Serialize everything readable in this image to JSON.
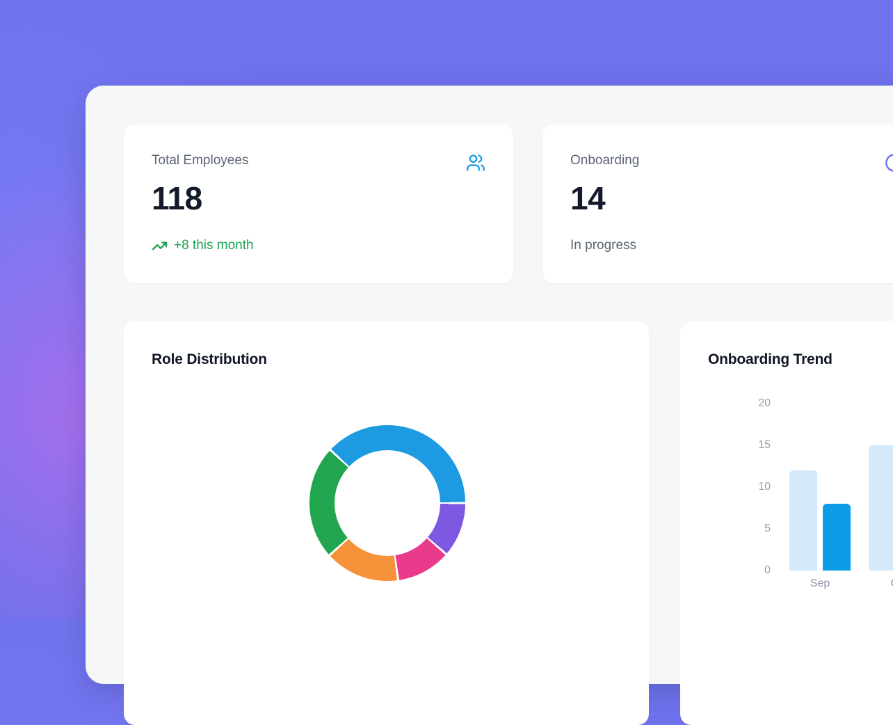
{
  "theme": {
    "bg_base": "#6f72ec",
    "bg_glow_pink": "#d56aeb",
    "bg_glow_blue": "#7d7df8",
    "panel_bg": "#f6f7f9",
    "card_bg": "#ffffff",
    "title_color": "#101725",
    "label_color": "#5c6575",
    "value_color": "#131b2a",
    "tick_color": "#98a1ae",
    "xlabel_color": "#8d96a4",
    "trend_green": "#1da150",
    "users_icon_blue": "#1b9ae0",
    "clock_icon_indigo": "#6b6cf2"
  },
  "stat_cards": [
    {
      "label": "Total Employees",
      "value": "118",
      "trend_text": "+8 this month",
      "icon": "users-icon"
    },
    {
      "label": "Onboarding",
      "value": "14",
      "subtitle": "In progress",
      "icon": "clock-icon"
    }
  ],
  "chart_data": [
    {
      "type": "pie",
      "style": "donut",
      "title": "Role Distribution",
      "start_angle_deg": 313,
      "segments": [
        {
          "label": "segment-blue",
          "color": "#1d9ae2",
          "arc_deg": 137,
          "percent": 38.1
        },
        {
          "label": "segment-purple",
          "color": "#7f58e2",
          "arc_deg": 41,
          "percent": 11.4
        },
        {
          "label": "segment-pink",
          "color": "#e93a8c",
          "arc_deg": 41,
          "percent": 11.4
        },
        {
          "label": "segment-orange",
          "color": "#f6933a",
          "arc_deg": 56,
          "percent": 15.6
        },
        {
          "label": "segment-green",
          "color": "#21a64f",
          "arc_deg": 85,
          "percent": 23.6
        }
      ]
    },
    {
      "type": "bar",
      "title": "Onboarding Trend",
      "categories": [
        "Sep",
        "Oct"
      ],
      "series": [
        {
          "name": "light",
          "color": "#d4e9f9",
          "values": [
            12,
            15
          ]
        },
        {
          "name": "dark",
          "color": "#0b9ce8",
          "values": [
            8,
            null
          ]
        }
      ],
      "ylim": [
        0,
        20
      ],
      "yticks": [
        0,
        5,
        10,
        15,
        20
      ],
      "grid": false,
      "legend": false
    }
  ]
}
